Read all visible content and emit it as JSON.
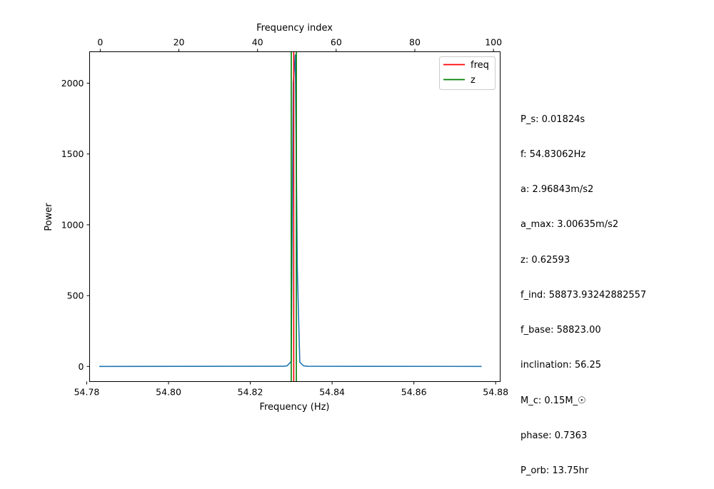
{
  "chart_data": {
    "type": "line",
    "title": "",
    "xlabel": "Frequency (Hz)",
    "ylabel": "Power",
    "top_xlabel": "Frequency index",
    "xlim": [
      54.7807,
      54.8811
    ],
    "ylim": [
      -107,
      2222
    ],
    "top_xlim": [
      -2.7,
      101.7
    ],
    "x_ticks": [
      54.78,
      54.8,
      54.82,
      54.84,
      54.86,
      54.88
    ],
    "x_tick_labels": [
      "54.78",
      "54.80",
      "54.82",
      "54.84",
      "54.86",
      "54.88"
    ],
    "y_ticks": [
      0,
      500,
      1000,
      1500,
      2000
    ],
    "y_tick_labels": [
      "0",
      "500",
      "1000",
      "1500",
      "2000"
    ],
    "top_x_ticks": [
      0,
      20,
      40,
      60,
      80,
      100
    ],
    "top_x_tick_labels": [
      "0",
      "20",
      "40",
      "60",
      "80",
      "100"
    ],
    "grid": false,
    "legend_position": "upper right",
    "series": [
      {
        "color": "#1f77b4",
        "x": [
          54.78306,
          54.8281,
          54.829,
          54.83,
          54.8305,
          54.831,
          54.8315,
          54.8321,
          54.833,
          54.834,
          54.87656
        ],
        "y": [
          0,
          1,
          4,
          35,
          2000,
          2200,
          680,
          30,
          4,
          1,
          0
        ]
      }
    ],
    "vlines": [
      {
        "name": "freq",
        "x": 54.83062,
        "color": "#ff0000"
      },
      {
        "name": "z",
        "x": [
          54.83001,
          54.83126
        ],
        "color": "#008000"
      }
    ],
    "legend": [
      {
        "label": "freq",
        "color": "#ff0000"
      },
      {
        "label": "z",
        "color": "#008000"
      }
    ]
  },
  "info_lines": [
    "P_s: 0.01824s",
    "f: 54.83062Hz",
    "a: 2.96843m/s2",
    "a_max: 3.00635m/s2",
    "z: 0.62593",
    "f_ind: 58873.93242882557",
    "f_base: 58823.00",
    "inclination: 56.25",
    "M_c: 0.15M_☉",
    "phase: 0.7363",
    "P_orb: 13.75hr"
  ]
}
